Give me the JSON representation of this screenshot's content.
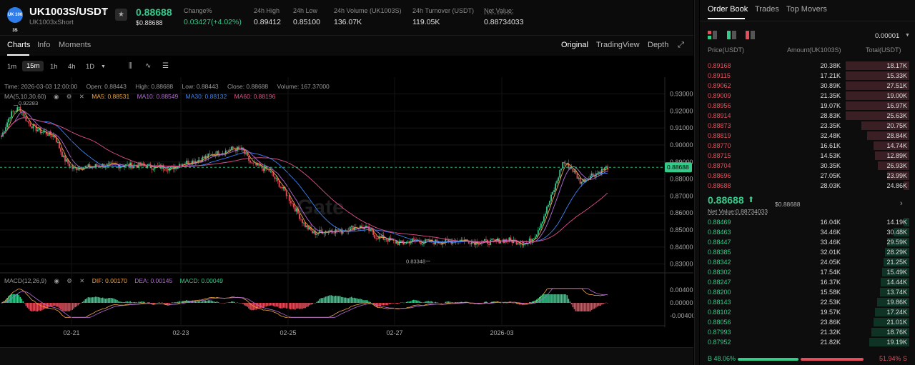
{
  "header": {
    "logo_text": "UK 100 3S",
    "pair": "UK1003S/USDT",
    "pair_sub": "UK1003xShort",
    "last_price": "0.88688",
    "last_price_usd": "$0.88688",
    "stats": [
      {
        "label": "Change%",
        "value": "0.03427(+4.02%)",
        "color": "green"
      },
      {
        "label": "24h High",
        "value": "0.89412"
      },
      {
        "label": "24h Low",
        "value": "0.85100"
      },
      {
        "label": "24h Volume (UK1003S)",
        "value": "136.07K"
      },
      {
        "label": "24h Turnover (USDT)",
        "value": "119.05K"
      },
      {
        "label": "Net Value:",
        "value": "0.88734033"
      }
    ]
  },
  "tabs": {
    "left": [
      "Charts",
      "Info",
      "Moments"
    ],
    "views": [
      "Original",
      "TradingView",
      "Depth"
    ]
  },
  "toolbar": {
    "timeframes": [
      "1m",
      "15m",
      "1h",
      "4h",
      "1D"
    ],
    "active_timeframe": "15m"
  },
  "chart_info": {
    "time": "Time: 2026-03-03 12:00:00",
    "open": "Open: 0.88443",
    "high": "High: 0.88688",
    "low": "Low: 0.88443",
    "close": "Close: 0.88688",
    "volume": "Volume: 167.37000",
    "ma_label": "MA(5,10,30,60)",
    "ma5": "MA5: 0.88531",
    "ma10": "MA10: 0.88549",
    "ma30": "MA30: 0.88132",
    "ma60": "MA60: 0.88196",
    "macd_label": "MACD(12,26,9)",
    "dif": "DIF: 0.00170",
    "dea": "DEA: 0.00145",
    "macd": "MACD: 0.00049",
    "watermark": "Gate",
    "peak_label": "0.92283",
    "trough_label": "0.83348",
    "current_price_tag": "0.88688"
  },
  "chart_data": {
    "type": "line",
    "series_kind": "candlestick",
    "x": [
      "02-21",
      "02-23",
      "02-25",
      "02-27",
      "2026-03"
    ],
    "ylim": [
      0.829,
      0.934
    ],
    "yticks": [
      "0.93000",
      "0.92000",
      "0.91000",
      "0.90000",
      "0.89000",
      "0.88000",
      "0.87000",
      "0.86000",
      "0.85000",
      "0.84000",
      "0.83000"
    ],
    "macd_yticks": [
      "0.00400",
      "0.00000",
      "-0.00400"
    ],
    "close_path": [
      0.905,
      0.918,
      0.922,
      0.913,
      0.909,
      0.907,
      0.905,
      0.892,
      0.886,
      0.887,
      0.887,
      0.888,
      0.888,
      0.888,
      0.888,
      0.888,
      0.888,
      0.887,
      0.887,
      0.886,
      0.889,
      0.89,
      0.891,
      0.893,
      0.895,
      0.896,
      0.898,
      0.897,
      0.889,
      0.887,
      0.885,
      0.878,
      0.871,
      0.862,
      0.853,
      0.848,
      0.849,
      0.85,
      0.849,
      0.851,
      0.852,
      0.851,
      0.846,
      0.845,
      0.843,
      0.842,
      0.844,
      0.843,
      0.843,
      0.843,
      0.843,
      0.844,
      0.844,
      0.843,
      0.843,
      0.843,
      0.844,
      0.844,
      0.843,
      0.842,
      0.848,
      0.86,
      0.874,
      0.89,
      0.886,
      0.878,
      0.882,
      0.884,
      0.887
    ]
  },
  "orderbook": {
    "tabs": [
      "Order Book",
      "Trades",
      "Top Movers"
    ],
    "precision": "0.00001",
    "columns": [
      "Price(USDT)",
      "Amount(UK1003S)",
      "Total(USDT)"
    ],
    "asks": [
      {
        "price": "0.89168",
        "amount": "20.38K",
        "total": "18.17K",
        "depth": 0.99
      },
      {
        "price": "0.89115",
        "amount": "17.21K",
        "total": "15.33K",
        "depth": 0.99
      },
      {
        "price": "0.89062",
        "amount": "30.89K",
        "total": "27.51K",
        "depth": 0.99
      },
      {
        "price": "0.89009",
        "amount": "21.35K",
        "total": "19.00K",
        "depth": 0.99
      },
      {
        "price": "0.88956",
        "amount": "19.07K",
        "total": "16.97K",
        "depth": 0.99
      },
      {
        "price": "0.88914",
        "amount": "28.83K",
        "total": "25.63K",
        "depth": 0.99
      },
      {
        "price": "0.88873",
        "amount": "23.35K",
        "total": "20.75K",
        "depth": 0.74
      },
      {
        "price": "0.88819",
        "amount": "32.48K",
        "total": "28.84K",
        "depth": 0.66
      },
      {
        "price": "0.88770",
        "amount": "16.61K",
        "total": "14.74K",
        "depth": 0.56
      },
      {
        "price": "0.88715",
        "amount": "14.53K",
        "total": "12.89K",
        "depth": 0.53
      },
      {
        "price": "0.88704",
        "amount": "30.35K",
        "total": "26.93K",
        "depth": 0.49
      },
      {
        "price": "0.88696",
        "amount": "27.05K",
        "total": "23.99K",
        "depth": 0.34
      },
      {
        "price": "0.88688",
        "amount": "28.03K",
        "total": "24.86K",
        "depth": 0.09
      }
    ],
    "mid_price": "0.88688",
    "mid_usd": "$0.88688",
    "mid_net": "Net Value:0.88734033",
    "bids": [
      {
        "price": "0.88469",
        "amount": "16.04K",
        "total": "14.19K",
        "depth": 0.09
      },
      {
        "price": "0.88463",
        "amount": "34.46K",
        "total": "30.48K",
        "depth": 0.24
      },
      {
        "price": "0.88447",
        "amount": "33.46K",
        "total": "29.59K",
        "depth": 0.34
      },
      {
        "price": "0.88385",
        "amount": "32.01K",
        "total": "28.29K",
        "depth": 0.38
      },
      {
        "price": "0.88342",
        "amount": "24.05K",
        "total": "21.25K",
        "depth": 0.4
      },
      {
        "price": "0.88302",
        "amount": "17.54K",
        "total": "15.49K",
        "depth": 0.42
      },
      {
        "price": "0.88247",
        "amount": "16.37K",
        "total": "14.44K",
        "depth": 0.44
      },
      {
        "price": "0.88200",
        "amount": "15.58K",
        "total": "13.74K",
        "depth": 0.46
      },
      {
        "price": "0.88143",
        "amount": "22.53K",
        "total": "19.86K",
        "depth": 0.5
      },
      {
        "price": "0.88102",
        "amount": "19.57K",
        "total": "17.24K",
        "depth": 0.53
      },
      {
        "price": "0.88056",
        "amount": "23.86K",
        "total": "21.01K",
        "depth": 0.56
      },
      {
        "price": "0.87993",
        "amount": "21.32K",
        "total": "18.76K",
        "depth": 0.59
      },
      {
        "price": "0.87952",
        "amount": "21.82K",
        "total": "19.19K",
        "depth": 0.62
      }
    ],
    "buy_ratio": "B 48.06%",
    "sell_ratio": "51.94% S",
    "buy_fraction": 0.4806
  },
  "colors": {
    "up": "#35c98a",
    "down": "#e24f5c",
    "ma5": "#f0a640",
    "ma10": "#b36bd4",
    "ma30": "#3b82f6",
    "ma60": "#e24f8c"
  }
}
